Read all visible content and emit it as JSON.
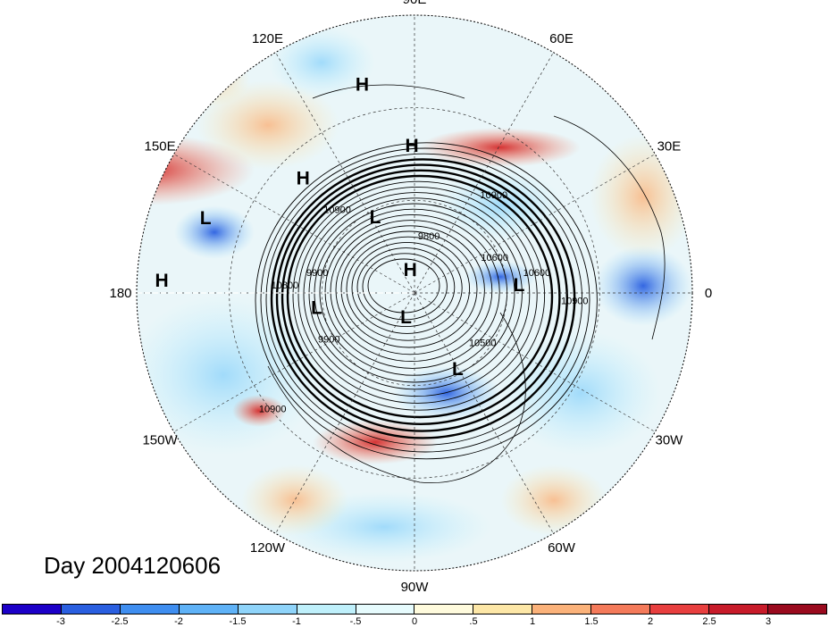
{
  "title": "Day 2004120606",
  "longitude_labels": [
    {
      "text": "90E",
      "lon": 90
    },
    {
      "text": "60E",
      "lon": 60
    },
    {
      "text": "30E",
      "lon": 30
    },
    {
      "text": "0",
      "lon": 0
    },
    {
      "text": "30W",
      "lon": -30
    },
    {
      "text": "60W",
      "lon": -60
    },
    {
      "text": "90W",
      "lon": -90
    },
    {
      "text": "120W",
      "lon": -120
    },
    {
      "text": "150W",
      "lon": -150
    },
    {
      "text": "180",
      "lon": 180
    },
    {
      "text": "150E",
      "lon": 150
    },
    {
      "text": "120E",
      "lon": 120
    }
  ],
  "pressure_centers": [
    {
      "type": "H",
      "lon": 104,
      "lat": 20
    },
    {
      "type": "H",
      "lon": 91,
      "lat": 42
    },
    {
      "type": "H",
      "lon": 134,
      "lat": 38
    },
    {
      "type": "L",
      "lon": 160,
      "lat": 18
    },
    {
      "type": "H",
      "lon": 177,
      "lat": 8
    },
    {
      "type": "L",
      "lon": 117,
      "lat": 62
    },
    {
      "type": "H",
      "lon": 100,
      "lat": 82
    },
    {
      "type": "L",
      "lon": -172,
      "lat": 58
    },
    {
      "type": "L",
      "lon": -110,
      "lat": 82
    },
    {
      "type": "L",
      "lon": 5,
      "lat": 56
    },
    {
      "type": "L",
      "lon": -60,
      "lat": 62
    }
  ],
  "contour_labels": [
    {
      "text": "10900",
      "lon": 50,
      "lat": 50
    },
    {
      "text": "9800",
      "lon": 75,
      "lat": 72
    },
    {
      "text": "10900",
      "lon": 134,
      "lat": 54
    },
    {
      "text": "9900",
      "lon": 170,
      "lat": 58
    },
    {
      "text": "10800",
      "lon": 178,
      "lat": 48
    },
    {
      "text": "10600",
      "lon": 22,
      "lat": 62
    },
    {
      "text": "10600",
      "lon": 8,
      "lat": 50
    },
    {
      "text": "10900",
      "lon": -4,
      "lat": 38
    },
    {
      "text": "10500",
      "lon": -38,
      "lat": 62
    },
    {
      "text": "9900",
      "lon": -150,
      "lat": 58
    },
    {
      "text": "10900",
      "lon": -140,
      "lat": 30
    }
  ],
  "colorbar": {
    "ticks": [
      "-3",
      "-2.5",
      "-2",
      "-1.5",
      "-1",
      "-.5",
      "0",
      ".5",
      "1",
      "1.5",
      "2",
      "2.5",
      "3"
    ],
    "colors": [
      "#1c00c8",
      "#2a5fe0",
      "#3f8ef0",
      "#5fb2f7",
      "#8fd4fa",
      "#bff0fb",
      "#e6fbfd",
      "#fffbdd",
      "#fde7a7",
      "#fbb27a",
      "#f47a5a",
      "#e83f3f",
      "#c81b2a",
      "#9a0a1e"
    ]
  }
}
